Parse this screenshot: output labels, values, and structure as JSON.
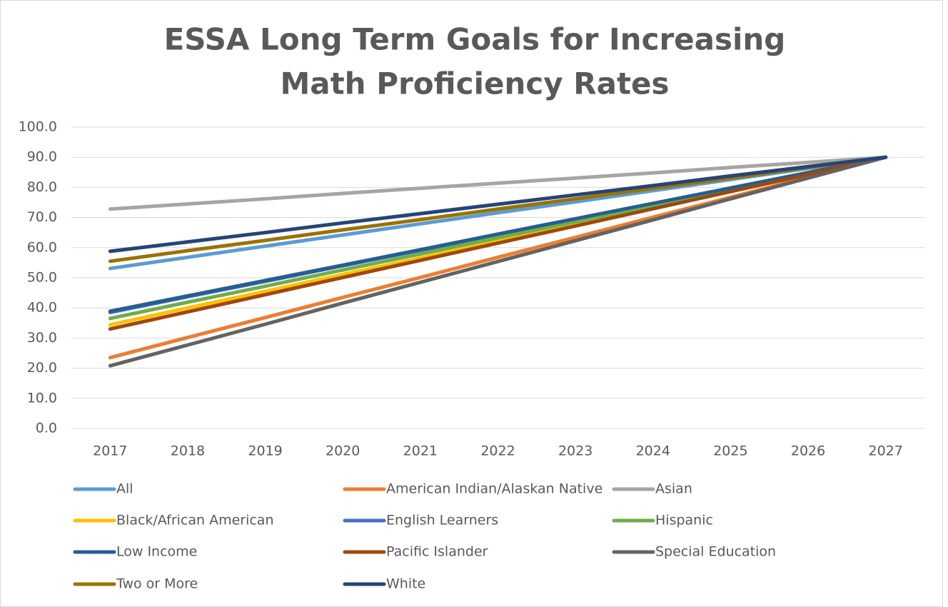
{
  "chart_data": {
    "type": "line",
    "title": [
      "ESSA Long Term Goals for Increasing",
      "Math Proficiency Rates"
    ],
    "categories": [
      "2017",
      "2018",
      "2019",
      "2020",
      "2021",
      "2022",
      "2023",
      "2024",
      "2025",
      "2026",
      "2027"
    ],
    "ylim": [
      0,
      100
    ],
    "yticks": [
      {
        "value": 0,
        "label": "0.0"
      },
      {
        "value": 10,
        "label": "10.0"
      },
      {
        "value": 20,
        "label": "20.0"
      },
      {
        "value": 30,
        "label": "30.0"
      },
      {
        "value": 40,
        "label": "40.0"
      },
      {
        "value": 50,
        "label": "50.0"
      },
      {
        "value": 60,
        "label": "60.0"
      },
      {
        "value": 70,
        "label": "70.0"
      },
      {
        "value": 80,
        "label": "80.0"
      },
      {
        "value": 90,
        "label": "90.0"
      },
      {
        "value": 100,
        "label": "100.0"
      }
    ],
    "grid": true,
    "legend": "bottom",
    "series": [
      {
        "name": "All",
        "color": "#5b9bd5",
        "values": [
          53.1,
          56.8,
          60.5,
          64.2,
          67.9,
          71.6,
          75.2,
          78.9,
          82.6,
          86.3,
          90.0
        ]
      },
      {
        "name": "American Indian/Alaskan Native",
        "color": "#ed7d31",
        "values": [
          23.5,
          30.2,
          36.8,
          43.5,
          50.1,
          56.8,
          63.4,
          70.1,
          76.7,
          83.4,
          90.0
        ]
      },
      {
        "name": "Asian",
        "color": "#a5a5a5",
        "values": [
          72.8,
          74.5,
          76.2,
          78.0,
          79.7,
          81.4,
          83.1,
          84.8,
          86.6,
          88.3,
          90.0
        ]
      },
      {
        "name": "Black/African American",
        "color": "#ffc000",
        "values": [
          34.4,
          40.0,
          45.5,
          51.1,
          56.6,
          62.2,
          67.8,
          73.3,
          78.9,
          84.4,
          90.0
        ]
      },
      {
        "name": "English Learners",
        "color": "#4472c4",
        "values": [
          38.5,
          43.7,
          48.8,
          54.0,
          59.1,
          64.3,
          69.4,
          74.6,
          79.7,
          84.9,
          90.0
        ]
      },
      {
        "name": "Hispanic",
        "color": "#70ad47",
        "values": [
          36.5,
          41.9,
          47.2,
          52.6,
          57.9,
          63.3,
          68.6,
          74.0,
          79.3,
          84.7,
          90.0
        ]
      },
      {
        "name": "Low Income",
        "color": "#255e91",
        "values": [
          38.9,
          44.0,
          49.1,
          54.2,
          59.3,
          64.5,
          69.6,
          74.7,
          79.8,
          84.9,
          90.0
        ]
      },
      {
        "name": "Pacific Islander",
        "color": "#9e480e",
        "values": [
          33.0,
          38.7,
          44.4,
          50.1,
          55.8,
          61.5,
          67.2,
          72.9,
          78.6,
          84.3,
          90.0
        ]
      },
      {
        "name": "Special Education",
        "color": "#636363",
        "values": [
          20.8,
          27.7,
          34.6,
          41.6,
          48.5,
          55.4,
          62.3,
          69.2,
          76.2,
          83.1,
          90.0
        ]
      },
      {
        "name": "Two or More",
        "color": "#997300",
        "values": [
          55.5,
          59.0,
          62.4,
          65.9,
          69.3,
          72.8,
          76.2,
          79.7,
          83.1,
          86.6,
          90.0
        ]
      },
      {
        "name": "White",
        "color": "#264478",
        "values": [
          58.8,
          61.9,
          65.0,
          68.2,
          71.3,
          74.4,
          77.5,
          80.6,
          83.8,
          86.9,
          90.0
        ]
      }
    ]
  }
}
